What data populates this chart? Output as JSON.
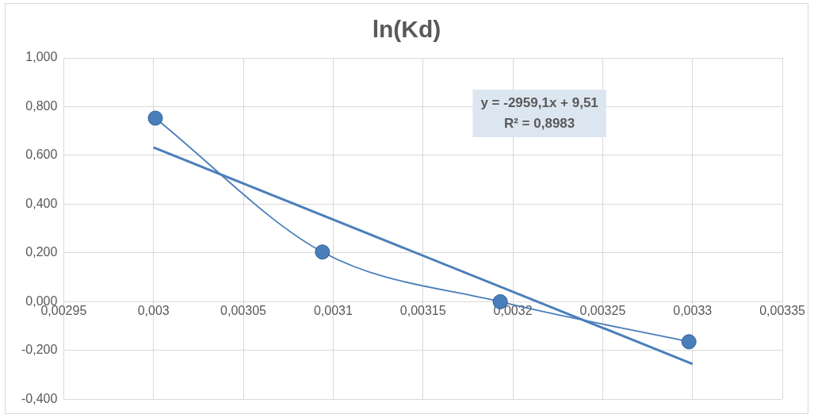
{
  "chart_data": {
    "type": "line",
    "title": "ln(Kd)",
    "xlim": [
      0.00295,
      0.00335
    ],
    "xticks": [
      {
        "value": 0.00295,
        "label": "0,00295"
      },
      {
        "value": 0.003,
        "label": "0,003"
      },
      {
        "value": 0.00305,
        "label": "0,00305"
      },
      {
        "value": 0.0031,
        "label": "0,0031"
      },
      {
        "value": 0.00315,
        "label": "0,00315"
      },
      {
        "value": 0.0032,
        "label": "0,0032"
      },
      {
        "value": 0.00325,
        "label": "0,00325"
      },
      {
        "value": 0.0033,
        "label": "0,0033"
      },
      {
        "value": 0.00335,
        "label": "0,00335"
      }
    ],
    "ylim": [
      -0.4,
      1.0
    ],
    "yticks": [
      {
        "value": -0.4,
        "label": "-0,400"
      },
      {
        "value": -0.2,
        "label": "-0,200"
      },
      {
        "value": 0,
        "label": "0,000"
      },
      {
        "value": 0.2,
        "label": "0,200"
      },
      {
        "value": 0.4,
        "label": "0,400"
      },
      {
        "value": 0.6,
        "label": "0,600"
      },
      {
        "value": 0.8,
        "label": "0,800"
      },
      {
        "value": 1.0,
        "label": "1,000"
      }
    ],
    "series": [
      {
        "type": "line",
        "color": "#4a7ebb",
        "marker": "circle",
        "x": [
          0.003001,
          0.003094,
          0.003193,
          0.003298
        ],
        "values": [
          0.753,
          0.204,
          0.0,
          -0.164
        ]
      },
      {
        "type": "line",
        "color": "#4a7ebb",
        "marker": "none",
        "x": [
          0.003,
          0.0033
        ],
        "values": [
          0.633,
          -0.255
        ]
      }
    ],
    "annotations": [
      "y = -2959,1x + 9,51\nR² = 0,8983"
    ],
    "grid": true,
    "legend": false
  }
}
